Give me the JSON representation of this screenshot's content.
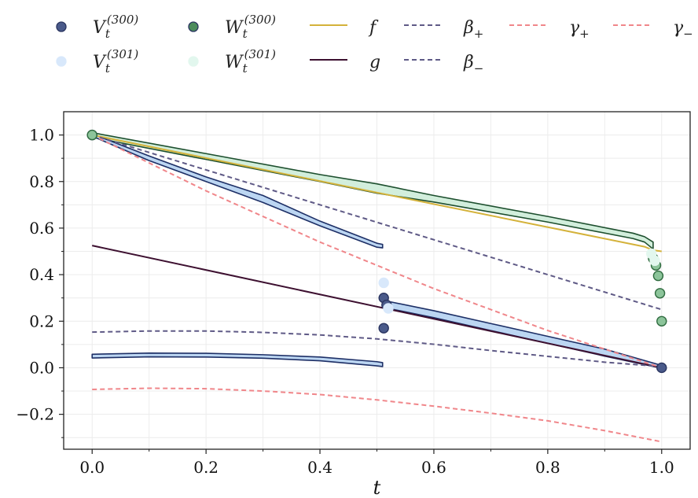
{
  "chart_data": {
    "type": "scatter",
    "title": "",
    "xlabel": "t",
    "ylabel": "",
    "xlim": [
      -0.05,
      1.05
    ],
    "ylim": [
      -0.35,
      1.1
    ],
    "xticks": [
      0.0,
      0.2,
      0.4,
      0.6,
      0.8,
      1.0
    ],
    "xtick_labels": [
      "0.0",
      "0.2",
      "0.4",
      "0.6",
      "0.8",
      "1.0"
    ],
    "yticks": [
      -0.2,
      0.0,
      0.2,
      0.4,
      0.6,
      0.8,
      1.0
    ],
    "ytick_labels": [
      "−0.2",
      "0.0",
      "0.2",
      "0.4",
      "0.6",
      "0.8",
      "1.0"
    ],
    "grid": true,
    "legend": {
      "placement": "top",
      "entries": [
        {
          "key": "V300",
          "kind": "marker",
          "label": "V",
          "sub": "t",
          "sup": "(300)",
          "color": "#4a5a8a"
        },
        {
          "key": "W300",
          "kind": "marker",
          "label": "W",
          "sub": "t",
          "sup": "(300)",
          "color": "#4c8c5c"
        },
        {
          "key": "f",
          "kind": "line",
          "label": "f",
          "color": "#d4b23a"
        },
        {
          "key": "beta_plus",
          "kind": "dashed",
          "label": "β",
          "sub": "+",
          "color": "#5f5a86"
        },
        {
          "key": "gamma_plus",
          "kind": "dashed",
          "label": "γ",
          "sub": "+",
          "color": "#f0868a"
        },
        {
          "key": "gamma_minus",
          "kind": "dashed",
          "label": "γ",
          "sub": "−",
          "color": "#f0868a"
        },
        {
          "key": "V301",
          "kind": "marker",
          "label": "V",
          "sub": "t",
          "sup": "(301)",
          "color": "#d8e8fb"
        },
        {
          "key": "W301",
          "kind": "marker",
          "label": "W",
          "sub": "t",
          "sup": "(301)",
          "color": "#e2f7ee"
        },
        {
          "key": "g",
          "kind": "line",
          "label": "g",
          "color": "#3d1030"
        },
        {
          "key": "beta_minus",
          "kind": "dashed",
          "label": "β",
          "sub": "−",
          "color": "#5f5a86"
        }
      ]
    },
    "lines": [
      {
        "name": "f",
        "style": "solid",
        "color": "#d4b23a",
        "segments": [
          {
            "x": [
              0.0,
              0.97,
              0.985,
              1.0
            ],
            "y": [
              1.0,
              0.52,
              0.505,
              0.5
            ]
          }
        ]
      },
      {
        "name": "g",
        "style": "solid",
        "color": "#3d1030",
        "segments": [
          {
            "x": [
              0.0,
              1.0
            ],
            "y": [
              0.525,
              0.0
            ]
          }
        ]
      },
      {
        "name": "beta_plus",
        "style": "dashed",
        "color": "#5f5a86",
        "segments": [
          {
            "x": [
              0.0,
              0.2,
              0.4,
              0.6,
              0.8,
              1.0
            ],
            "y": [
              1.0,
              0.85,
              0.7,
              0.55,
              0.4,
              0.25
            ]
          }
        ]
      },
      {
        "name": "beta_minus",
        "style": "dashed",
        "color": "#5f5a86",
        "segments": [
          {
            "x": [
              0.0,
              0.1,
              0.2,
              0.3,
              0.4,
              0.5,
              0.6,
              0.7,
              0.8,
              0.9,
              1.0
            ],
            "y": [
              0.153,
              0.158,
              0.158,
              0.152,
              0.141,
              0.124,
              0.101,
              0.074,
              0.049,
              0.024,
              0.005
            ]
          }
        ]
      },
      {
        "name": "gamma_plus",
        "style": "dashed",
        "color": "#f0868a",
        "segments": [
          {
            "x": [
              0.0,
              0.2,
              0.4,
              0.6,
              0.8,
              1.0
            ],
            "y": [
              1.0,
              0.76,
              0.54,
              0.34,
              0.16,
              0.0
            ]
          }
        ]
      },
      {
        "name": "gamma_minus",
        "style": "dashed",
        "color": "#f0868a",
        "segments": [
          {
            "x": [
              0.0,
              0.1,
              0.2,
              0.3,
              0.4,
              0.5,
              0.6,
              0.7,
              0.8,
              0.9,
              1.0
            ],
            "y": [
              -0.093,
              -0.088,
              -0.09,
              -0.1,
              -0.115,
              -0.138,
              -0.165,
              -0.195,
              -0.228,
              -0.27,
              -0.318
            ]
          }
        ]
      }
    ],
    "bands": [
      {
        "name": "W_band",
        "color": "#d2eedc",
        "edge_color": "#1d4f2e",
        "x": [
          0.0,
          0.2,
          0.4,
          0.5,
          0.6,
          0.8,
          0.95,
          0.97,
          0.985
        ],
        "upper": [
          1.01,
          0.92,
          0.83,
          0.79,
          0.74,
          0.65,
          0.578,
          0.563,
          0.54
        ],
        "lower": [
          0.99,
          0.895,
          0.8,
          0.75,
          0.712,
          0.626,
          0.555,
          0.54,
          0.51
        ]
      },
      {
        "name": "V_upper_band",
        "color": "#bcd6f2",
        "edge_color": "#1d2f66",
        "x": [
          0.0,
          0.1,
          0.2,
          0.3,
          0.4,
          0.5,
          0.51
        ],
        "upper": [
          1.005,
          0.91,
          0.82,
          0.74,
          0.63,
          0.535,
          0.53
        ],
        "lower": [
          0.995,
          0.89,
          0.8,
          0.71,
          0.61,
          0.518,
          0.515
        ]
      },
      {
        "name": "V_lower_band",
        "color": "#bcd6f2",
        "edge_color": "#1d2f66",
        "x": [
          0.0,
          0.1,
          0.2,
          0.3,
          0.4,
          0.5,
          0.51
        ],
        "upper": [
          0.058,
          0.063,
          0.062,
          0.056,
          0.046,
          0.026,
          0.022
        ],
        "lower": [
          0.042,
          0.047,
          0.046,
          0.041,
          0.03,
          0.008,
          0.005
        ]
      },
      {
        "name": "V_right_band",
        "color": "#bcd6f2",
        "edge_color": "#1d2f66",
        "x": [
          0.52,
          0.6,
          0.7,
          0.8,
          0.9,
          1.0
        ],
        "upper": [
          0.285,
          0.245,
          0.19,
          0.135,
          0.08,
          0.01
        ],
        "lower": [
          0.255,
          0.215,
          0.16,
          0.105,
          0.05,
          -0.002
        ]
      }
    ],
    "series": [
      {
        "name": "V300",
        "color": "#4a5a8a",
        "edge": "#2a3560",
        "x": [
          0.0,
          0.512,
          0.512,
          0.517,
          1.0
        ],
        "y": [
          1.0,
          0.3,
          0.17,
          0.27,
          0.0
        ]
      },
      {
        "name": "V301",
        "color": "#d8e8fb",
        "edge": "#d8e8fb",
        "x": [
          0.512,
          0.52
        ],
        "y": [
          0.365,
          0.255
        ]
      },
      {
        "name": "W300",
        "color": "#8cc49a",
        "edge": "#2f6b3f",
        "x": [
          0.0,
          0.985,
          0.99,
          0.994,
          0.997,
          1.0
        ],
        "y": [
          1.0,
          0.47,
          0.44,
          0.395,
          0.32,
          0.2
        ]
      },
      {
        "name": "W301",
        "color": "#e2f7ee",
        "edge": "#e2f7ee",
        "x": [
          0.982,
          0.988
        ],
        "y": [
          0.49,
          0.46
        ]
      }
    ]
  }
}
